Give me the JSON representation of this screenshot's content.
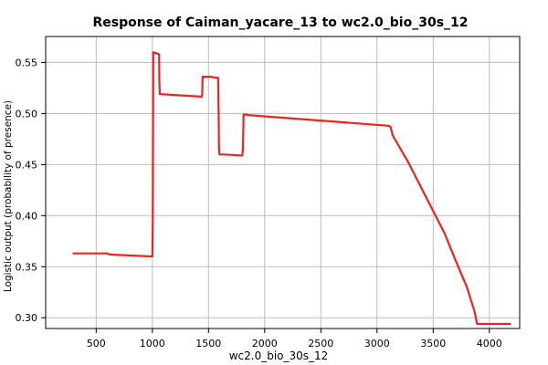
{
  "chart_data": {
    "type": "line",
    "title": "Response of Caiman_yacare_13 to wc2.0_bio_30s_12",
    "xlabel": "wc2.0_bio_30s_12",
    "ylabel": "Logistic output (probability of presence)",
    "xlim": [
      50,
      4270
    ],
    "ylim": [
      0.2895,
      0.5754
    ],
    "x_ticks": [
      500,
      1000,
      1500,
      2000,
      2500,
      3000,
      3500,
      4000
    ],
    "y_ticks": [
      0.3,
      0.35,
      0.4,
      0.45,
      0.5,
      0.55
    ],
    "x_tick_labels": [
      "500",
      "1000",
      "1500",
      "2000",
      "2500",
      "3000",
      "3500",
      "4000"
    ],
    "y_tick_labels": [
      "0.30",
      "0.35",
      "0.40",
      "0.45",
      "0.50",
      "0.55"
    ],
    "grid": true,
    "series": [
      {
        "color": "#ee2222",
        "x": [
          290,
          600,
          620,
          900,
          1000,
          1004,
          1008,
          1060,
          1062,
          1066,
          1430,
          1440,
          1444,
          1448,
          1520,
          1560,
          1585,
          1590,
          1593,
          1597,
          1700,
          1780,
          1800,
          1806,
          1812,
          1830,
          1850,
          3100,
          3120,
          3140,
          3280,
          3400,
          3600,
          3700,
          3800,
          3870,
          3890,
          4190
        ],
        "y": [
          0.363,
          0.363,
          0.362,
          0.3605,
          0.36,
          0.395,
          0.56,
          0.558,
          0.53,
          0.519,
          0.5165,
          0.5165,
          0.52,
          0.536,
          0.536,
          0.535,
          0.535,
          0.5,
          0.466,
          0.46,
          0.4595,
          0.459,
          0.459,
          0.465,
          0.499,
          0.499,
          0.4985,
          0.488,
          0.487,
          0.4785,
          0.452,
          0.426,
          0.383,
          0.356,
          0.33,
          0.3055,
          0.294,
          0.294
        ]
      }
    ]
  }
}
